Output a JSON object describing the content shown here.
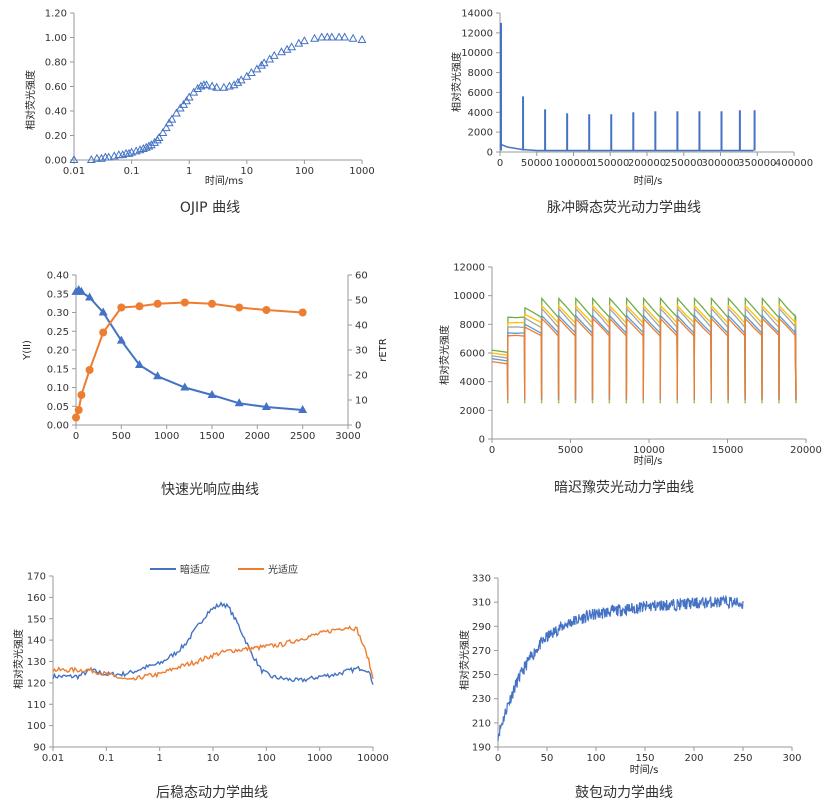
{
  "charts": [
    {
      "type": "scatter",
      "caption": "OJIP 曲线",
      "xlabel": "时间/ms",
      "ylabel": "相对荧光强度",
      "xscale": "log",
      "xlim": [
        0.01,
        1000
      ],
      "ylim": [
        0,
        1.2
      ],
      "xticks": [
        0.01,
        0.1,
        1,
        10,
        100,
        1000
      ],
      "xtick_labels": [
        "0.01",
        "0.1",
        "1",
        "10",
        "100",
        "1000"
      ],
      "yticks": [
        0,
        0.2,
        0.4,
        0.6,
        0.8,
        1.0,
        1.2
      ],
      "ytick_labels": [
        "0.00",
        "0.20",
        "0.40",
        "0.60",
        "0.80",
        "1.00",
        "1.20"
      ],
      "marker": "triangle",
      "color": "#4472C4",
      "x": [
        0.01,
        0.02,
        0.025,
        0.03,
        0.035,
        0.04,
        0.05,
        0.06,
        0.07,
        0.08,
        0.09,
        0.1,
        0.12,
        0.14,
        0.16,
        0.18,
        0.2,
        0.22,
        0.25,
        0.28,
        0.3,
        0.35,
        0.4,
        0.45,
        0.5,
        0.6,
        0.7,
        0.8,
        0.9,
        1.0,
        1.2,
        1.4,
        1.6,
        1.8,
        2.0,
        2.5,
        3,
        4,
        5,
        6,
        7,
        8,
        10,
        12,
        15,
        18,
        20,
        25,
        30,
        40,
        50,
        60,
        80,
        100,
        150,
        200,
        250,
        300,
        400,
        500,
        700,
        1000
      ],
      "y": [
        0.0,
        0.0,
        0.01,
        0.01,
        0.02,
        0.02,
        0.03,
        0.04,
        0.04,
        0.05,
        0.05,
        0.06,
        0.07,
        0.08,
        0.09,
        0.1,
        0.11,
        0.12,
        0.14,
        0.16,
        0.18,
        0.22,
        0.26,
        0.3,
        0.33,
        0.38,
        0.42,
        0.45,
        0.48,
        0.51,
        0.55,
        0.58,
        0.6,
        0.61,
        0.61,
        0.6,
        0.59,
        0.59,
        0.6,
        0.61,
        0.63,
        0.65,
        0.68,
        0.71,
        0.74,
        0.77,
        0.79,
        0.82,
        0.85,
        0.88,
        0.9,
        0.92,
        0.95,
        0.97,
        0.99,
        1.0,
        1.0,
        1.0,
        1.0,
        1.0,
        0.99,
        0.98
      ]
    },
    {
      "type": "line",
      "caption": "脉冲瞬态荧光动力学曲线",
      "xlabel": "时间/s",
      "ylabel": "相对荧光强度",
      "xlim": [
        0,
        400000
      ],
      "ylim": [
        0,
        14000
      ],
      "xticks": [
        0,
        50000,
        100000,
        150000,
        200000,
        250000,
        300000,
        350000,
        400000
      ],
      "xtick_labels": [
        "0",
        "50000",
        "100000",
        "150000",
        "200000",
        "250000",
        "300000",
        "350000",
        "400000"
      ],
      "yticks": [
        0,
        2000,
        4000,
        6000,
        8000,
        10000,
        12000,
        14000
      ],
      "ytick_labels": [
        "0",
        "2000",
        "4000",
        "6000",
        "8000",
        "10000",
        "12000",
        "14000"
      ],
      "color": "#4472C4",
      "initial": [
        [
          0,
          800
        ],
        [
          10000,
          500
        ],
        [
          30000,
          250
        ],
        [
          50000,
          150
        ],
        [
          345000,
          150
        ]
      ],
      "peaks": [
        {
          "x": 0,
          "y": 13000
        },
        {
          "x": 30000,
          "y": 5600
        },
        {
          "x": 60000,
          "y": 4300
        },
        {
          "x": 90000,
          "y": 3900
        },
        {
          "x": 120000,
          "y": 3800
        },
        {
          "x": 150000,
          "y": 3800
        },
        {
          "x": 180000,
          "y": 4000
        },
        {
          "x": 210000,
          "y": 4100
        },
        {
          "x": 240000,
          "y": 4100
        },
        {
          "x": 270000,
          "y": 4100
        },
        {
          "x": 300000,
          "y": 4100
        },
        {
          "x": 325000,
          "y": 4200
        },
        {
          "x": 345000,
          "y": 4200
        }
      ]
    },
    {
      "type": "line",
      "caption": "快速光响应曲线",
      "ylabel": "Y(II)",
      "y2label": "rETR",
      "xlim": [
        0,
        3000
      ],
      "ylim": [
        0,
        0.4
      ],
      "y2lim": [
        0,
        60
      ],
      "xticks": [
        0,
        500,
        1000,
        1500,
        2000,
        2500,
        3000
      ],
      "xtick_labels": [
        "0",
        "500",
        "1000",
        "1500",
        "2000",
        "2500",
        "3000"
      ],
      "yticks": [
        0,
        0.05,
        0.1,
        0.15,
        0.2,
        0.25,
        0.3,
        0.35,
        0.4
      ],
      "ytick_labels": [
        "0.00",
        "0.05",
        "0.10",
        "0.15",
        "0.20",
        "0.25",
        "0.30",
        "0.35",
        "0.40"
      ],
      "y2ticks": [
        0,
        10,
        20,
        30,
        40,
        50,
        60
      ],
      "y2tick_labels": [
        "0",
        "10",
        "20",
        "30",
        "40",
        "50",
        "60"
      ],
      "series": [
        {
          "axis": "left",
          "marker": "triangle",
          "color": "#4472C4",
          "x": [
            0,
            30,
            60,
            150,
            300,
            500,
            700,
            900,
            1200,
            1500,
            1800,
            2100,
            2500
          ],
          "y": [
            0.355,
            0.36,
            0.355,
            0.34,
            0.3,
            0.225,
            0.16,
            0.13,
            0.1,
            0.08,
            0.058,
            0.048,
            0.04
          ]
        },
        {
          "axis": "right",
          "marker": "circle",
          "color": "#ED7D31",
          "x": [
            0,
            30,
            60,
            150,
            300,
            500,
            700,
            900,
            1200,
            1500,
            1800,
            2100,
            2500
          ],
          "y": [
            3,
            6,
            12,
            22,
            37,
            47,
            47.5,
            48.5,
            49,
            48.5,
            47,
            46,
            45
          ]
        }
      ]
    },
    {
      "type": "line",
      "caption": "暗迟豫荧光动力学曲线",
      "xlabel": "时间/s",
      "ylabel": "相对荧光强度",
      "xlim": [
        0,
        20000
      ],
      "ylim": [
        0,
        12000
      ],
      "xticks": [
        0,
        5000,
        10000,
        15000,
        20000
      ],
      "xtick_labels": [
        "0",
        "5000",
        "10000",
        "15000",
        "20000"
      ],
      "yticks": [
        0,
        2000,
        4000,
        6000,
        8000,
        10000,
        12000
      ],
      "ytick_labels": [
        "0",
        "2000",
        "4000",
        "6000",
        "8000",
        "10000",
        "12000"
      ],
      "base_start": [
        6200,
        6000,
        5800,
        5600,
        5400
      ],
      "peak_series": [
        9800,
        9300,
        9100,
        8600,
        8400
      ],
      "decay_series": [
        8500,
        8100,
        7800,
        7400,
        7200
      ],
      "dip_level": 2500,
      "pulse_start": 1000,
      "pulse_period": 1080,
      "pulse_count": 17,
      "series_colors": [
        "#70AD47",
        "#FFC000",
        "#A5A5A5",
        "#5B9BD5",
        "#ED7D31"
      ]
    },
    {
      "type": "line",
      "caption": "后稳态动力学曲线",
      "ylabel": "相对荧光强度",
      "xscale": "log",
      "xlim": [
        0.01,
        10000
      ],
      "ylim": [
        90,
        170
      ],
      "xticks": [
        0.01,
        0.1,
        1,
        10,
        100,
        1000,
        10000
      ],
      "xtick_labels": [
        "0.01",
        "0.1",
        "1",
        "10",
        "100",
        "1000",
        "10000"
      ],
      "yticks": [
        90,
        100,
        110,
        120,
        130,
        140,
        150,
        160,
        170
      ],
      "ytick_labels": [
        "90",
        "100",
        "110",
        "120",
        "130",
        "140",
        "150",
        "160",
        "170"
      ],
      "legend": "top-center",
      "series": [
        {
          "name": "暗适应",
          "color": "#4472C4",
          "x": [
            0.01,
            0.03,
            0.05,
            0.1,
            0.2,
            0.3,
            0.5,
            1,
            2,
            3,
            5,
            8,
            12,
            16,
            20,
            30,
            50,
            80,
            120,
            200,
            400,
            700,
            1000,
            2000,
            4000,
            6000,
            8000,
            10000
          ],
          "y": [
            123,
            123,
            126,
            124,
            124,
            125,
            127,
            129,
            134,
            138,
            146,
            153,
            156,
            157,
            155,
            147,
            135,
            126,
            123,
            122,
            121,
            122,
            123,
            124,
            126,
            127,
            126,
            120
          ]
        },
        {
          "name": "光适应",
          "color": "#ED7D31",
          "x": [
            0.01,
            0.03,
            0.05,
            0.1,
            0.2,
            0.3,
            0.5,
            1,
            2,
            5,
            10,
            20,
            50,
            100,
            200,
            500,
            1000,
            2000,
            3000,
            4000,
            5000,
            6000,
            8000,
            10000
          ],
          "y": [
            126,
            126,
            126,
            124,
            122,
            121,
            123,
            124,
            127,
            130,
            133,
            135,
            136,
            137,
            138,
            141,
            143,
            145,
            146,
            146,
            145,
            140,
            132,
            122
          ]
        }
      ]
    },
    {
      "type": "line",
      "caption": "鼓包动力学曲线",
      "xlabel": "时间/s",
      "ylabel": "相对荧光强度",
      "xlim": [
        0,
        300
      ],
      "ylim": [
        190,
        330
      ],
      "xticks": [
        0,
        50,
        100,
        150,
        200,
        250,
        300
      ],
      "xtick_labels": [
        "0",
        "50",
        "100",
        "150",
        "200",
        "250",
        "300"
      ],
      "yticks": [
        190,
        210,
        230,
        250,
        270,
        290,
        310,
        330
      ],
      "ytick_labels": [
        "190",
        "210",
        "230",
        "250",
        "270",
        "290",
        "310",
        "330"
      ],
      "color": "#4472C4",
      "x": [
        0,
        5,
        10,
        20,
        30,
        40,
        50,
        60,
        70,
        80,
        90,
        100,
        120,
        140,
        160,
        180,
        200,
        220,
        240,
        250
      ],
      "y": [
        200,
        212,
        225,
        245,
        260,
        272,
        281,
        287,
        292,
        295,
        298,
        300,
        303,
        305,
        307,
        308,
        309,
        310,
        310,
        308
      ]
    }
  ]
}
